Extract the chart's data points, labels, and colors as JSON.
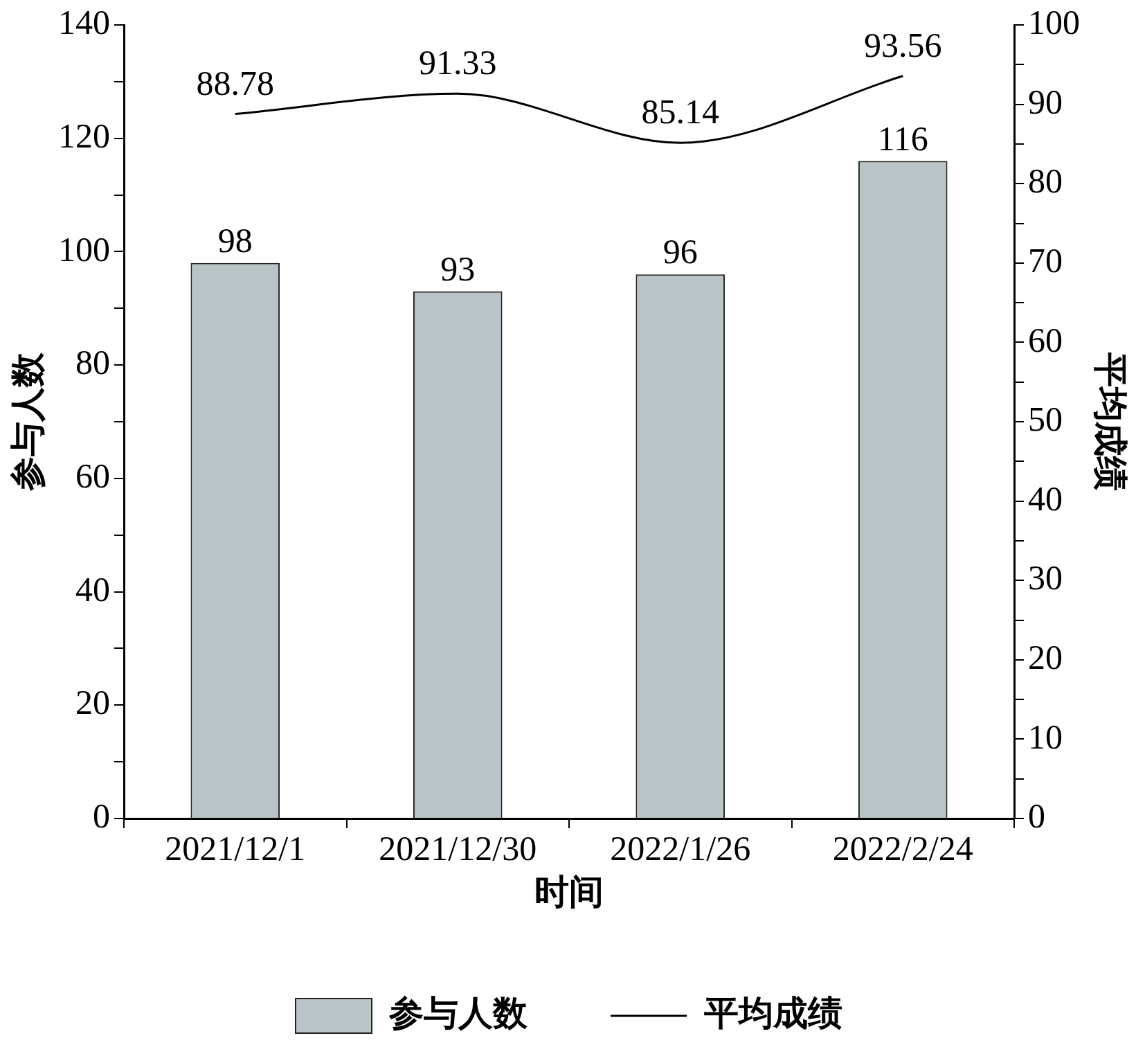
{
  "chart_data": {
    "type": "bar",
    "xlabel": "时间",
    "ylabel": "参与人数",
    "y2label": "平均成绩",
    "categories": [
      "2021/12/1",
      "2021/12/30",
      "2022/1/26",
      "2022/2/24"
    ],
    "series": [
      {
        "name": "参与人数",
        "color": "#b8c4c6",
        "values": [
          98,
          93,
          96,
          116
        ]
      },
      {
        "name": "平均成绩",
        "type": "line",
        "axis": "y2",
        "color": "#000000",
        "values": [
          88.78,
          91.33,
          85.14,
          93.56
        ]
      }
    ],
    "ylim": [
      0,
      140
    ],
    "yticks": [
      0,
      {
        "value": 10,
        "label": null
      },
      20,
      {
        "value": 30,
        "label": null
      },
      40,
      {
        "value": 50,
        "label": null
      },
      60,
      {
        "value": 70,
        "label": null
      },
      80,
      {
        "value": 90,
        "label": null
      },
      100,
      {
        "value": 110,
        "label": null
      },
      120,
      {
        "value": 130,
        "label": null
      },
      140
    ],
    "y2lim": [
      0,
      100
    ],
    "y2ticks": [
      0,
      {
        "value": 5,
        "label": null
      },
      10,
      {
        "value": 15,
        "label": null
      },
      20,
      {
        "value": 25,
        "label": null
      },
      30,
      {
        "value": 35,
        "label": null
      },
      40,
      {
        "value": 45,
        "label": null
      },
      50,
      {
        "value": 55,
        "label": null
      },
      60,
      {
        "value": 65,
        "label": null
      },
      70,
      {
        "value": 75,
        "label": null
      },
      80,
      {
        "value": 85,
        "label": null
      },
      90,
      {
        "value": 95,
        "label": null
      },
      100
    ],
    "data_labels": true,
    "legend": "bottom",
    "grid": false,
    "marker": "none",
    "line_style": "solid"
  }
}
